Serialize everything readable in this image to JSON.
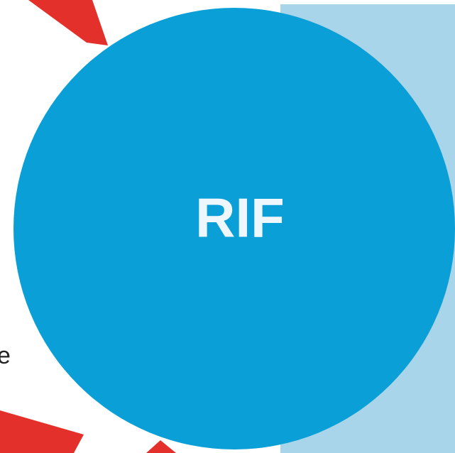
{
  "center_node": {
    "label": "RIF"
  },
  "side_text": {
    "label": "e"
  }
}
